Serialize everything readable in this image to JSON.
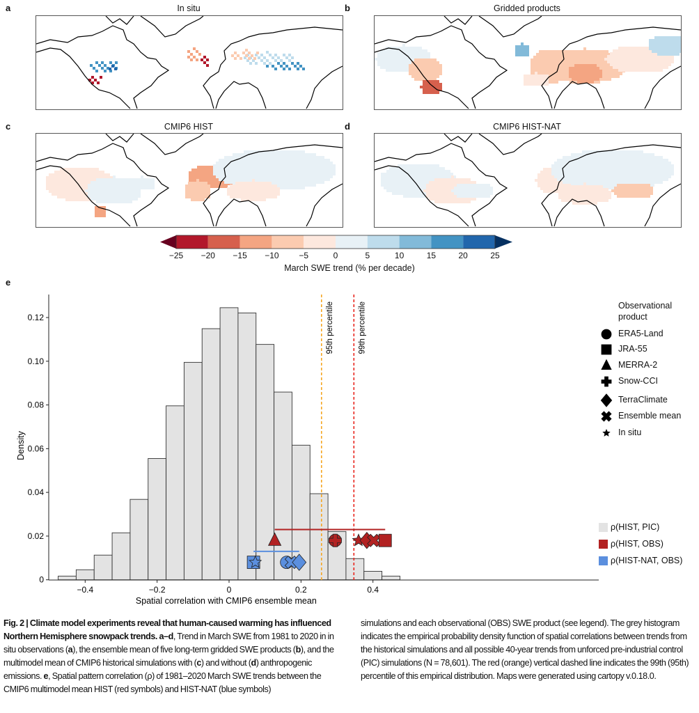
{
  "panels": [
    {
      "letter": "a",
      "title": "In situ"
    },
    {
      "letter": "b",
      "title": "Gridded products"
    },
    {
      "letter": "c",
      "title": "CMIP6 HIST"
    },
    {
      "letter": "d",
      "title": "CMIP6 HIST-NAT"
    }
  ],
  "colorbar": {
    "label": "March SWE trend (% per decade)",
    "ticks": [
      "−25",
      "−20",
      "−15",
      "−10",
      "−5",
      "0",
      "5",
      "10",
      "15",
      "20",
      "25"
    ],
    "colors": [
      "#b2182b",
      "#d6604d",
      "#f4a582",
      "#fbcbb0",
      "#fde8de",
      "#e8f1f6",
      "#bedcec",
      "#82bad9",
      "#4393c3",
      "#2166ac"
    ],
    "extend_low": "#67001f",
    "extend_high": "#053061"
  },
  "panel_e_letter": "e",
  "chart_data": {
    "type": "bar",
    "xlabel": "Spatial correlation with CMIP6 ensemble mean",
    "ylabel": "Density",
    "xlim": [
      -0.5,
      0.51
    ],
    "ylim": [
      0,
      0.13
    ],
    "xticks": [
      -0.4,
      -0.2,
      0,
      0.2,
      0.4
    ],
    "xtick_labels": [
      "−0.4",
      "−0.2",
      "0",
      "0.2",
      "0.4"
    ],
    "yticks": [
      0,
      0.02,
      0.04,
      0.06,
      0.08,
      0.1,
      0.12
    ],
    "ytick_labels": [
      "0",
      "0.02",
      "0.04",
      "0.06",
      "0.08",
      "0.10",
      "0.12"
    ],
    "histogram": {
      "name": "ρ(HIST, PIC)",
      "color": "#e3e3e3",
      "bin_edges": [
        -0.475,
        -0.425,
        -0.375,
        -0.325,
        -0.275,
        -0.225,
        -0.175,
        -0.125,
        -0.075,
        -0.025,
        0.025,
        0.075,
        0.125,
        0.175,
        0.225,
        0.275,
        0.325,
        0.375,
        0.425,
        0.475
      ],
      "density": [
        0.0017,
        0.0046,
        0.0113,
        0.0215,
        0.0368,
        0.0555,
        0.0796,
        0.0995,
        0.1149,
        0.1245,
        0.1221,
        0.1077,
        0.0859,
        0.0616,
        0.0394,
        0.0221,
        0.0097,
        0.0039,
        0.0017
      ]
    },
    "percentile_lines": [
      {
        "label": "95th percentile",
        "x": 0.257,
        "color": "#f5a623"
      },
      {
        "label": "99th percentile",
        "x": 0.347,
        "color": "#e8241c"
      }
    ],
    "series": [
      {
        "name": "ρ(HIST, OBS)",
        "color": "#b22222",
        "y": 0.018,
        "range_y": 0.023,
        "range": [
          0.127,
          0.434
        ],
        "points": [
          {
            "product": "MERRA-2",
            "x": 0.127
          },
          {
            "product": "ERA5-Land",
            "x": 0.295
          },
          {
            "product": "Snow-CCI",
            "x": 0.295
          },
          {
            "product": "In situ",
            "x": 0.36
          },
          {
            "product": "TerraClimate",
            "x": 0.383
          },
          {
            "product": "Ensemble mean",
            "x": 0.402
          },
          {
            "product": "JRA-55",
            "x": 0.434
          }
        ]
      },
      {
        "name": "ρ(HIST-NAT, OBS)",
        "color": "#5b8fde",
        "y": 0.008,
        "range_y": 0.013,
        "range": [
          0.068,
          0.195
        ],
        "points": [
          {
            "product": "JRA-55",
            "x": 0.068
          },
          {
            "product": "In situ",
            "x": 0.073
          },
          {
            "product": "ERA5-Land",
            "x": 0.16
          },
          {
            "product": "Ensemble mean",
            "x": 0.173
          },
          {
            "product": "TerraClimate",
            "x": 0.195
          }
        ]
      }
    ],
    "legend_title": "Observational product",
    "legend_products": [
      {
        "label": "ERA5-Land",
        "shape": "circle"
      },
      {
        "label": "JRA-55",
        "shape": "square"
      },
      {
        "label": "MERRA-2",
        "shape": "triangle"
      },
      {
        "label": "Snow-CCI",
        "shape": "plus"
      },
      {
        "label": "TerraClimate",
        "shape": "diamond"
      },
      {
        "label": "Ensemble mean",
        "shape": "x"
      },
      {
        "label": "In situ",
        "shape": "star"
      }
    ],
    "legend_groups": [
      {
        "label": "ρ(HIST, PIC)",
        "color": "#e3e3e3"
      },
      {
        "label": "ρ(HIST, OBS)",
        "color": "#b22222"
      },
      {
        "label": "ρ(HIST-NAT, OBS)",
        "color": "#5b8fde"
      }
    ]
  },
  "caption": {
    "fig": "Fig. 2 | ",
    "title": "Climate model experiments reveal that human-caused warming has influenced Northern Hemisphere snowpack trends. ",
    "ad": "a–d",
    "t1": ", Trend in March SWE from 1981 to 2020 in in situ observations (",
    "a": "a",
    "t2": "), the ensemble mean of five long-term gridded SWE products (",
    "b": "b",
    "t3": "), and the multimodel mean of CMIP6 historical simulations with (",
    "c": "c",
    "t4": ") and without (",
    "d": "d",
    "t5": ") anthropogenic emissions. ",
    "e": "e",
    "t6": ", Spatial pattern correlation (ρ) of 1981–2020 March SWE trends between the CMIP6 multimodel mean HIST (red symbols) and HIST-NAT (blue symbols)",
    "right": "simulations and each observational (OBS) SWE product (see legend). The grey histogram indicates the empirical probability density function of spatial correlations between trends from the historical simulations and all possible 40-year trends from unforced pre-industrial control (PIC) simulations (N = 78,601). The red (orange) vertical dashed line indicates the 99th (95th) percentile of this empirical distribution. Maps were generated using cartopy v.0.18.0."
  }
}
